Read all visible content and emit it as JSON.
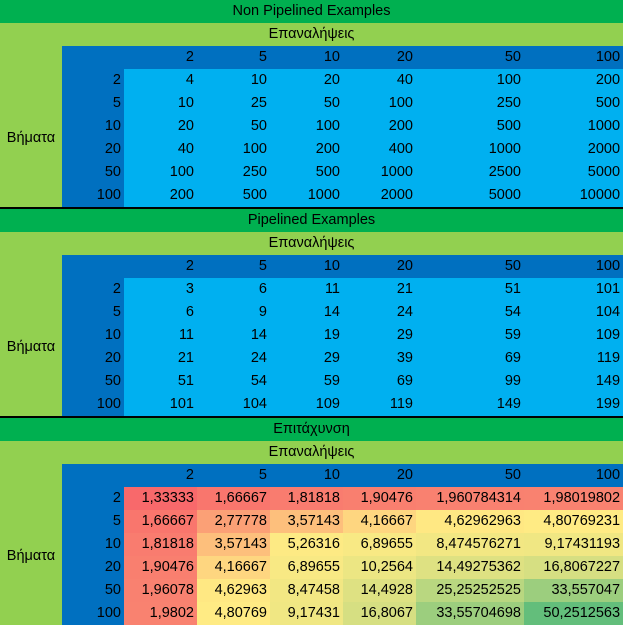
{
  "colors": {
    "title_green": "#00b050",
    "light_green": "#92d050",
    "dark_blue": "#0070c0",
    "light_blue": "#00b0f0",
    "heat_low": "#f8696b",
    "heat_mid": "#ffeb84",
    "heat_high": "#63be7b"
  },
  "col_headers": [
    "2",
    "5",
    "10",
    "20",
    "50",
    "100"
  ],
  "row_headers": [
    "2",
    "5",
    "10",
    "20",
    "50",
    "100"
  ],
  "sections": [
    {
      "title": "Non Pipelined Examples",
      "subtitle": "Επαναλήψεις",
      "row_label": "Βήματα",
      "heatmap": false,
      "rows": [
        [
          "4",
          "10",
          "20",
          "40",
          "100",
          "200"
        ],
        [
          "10",
          "25",
          "50",
          "100",
          "250",
          "500"
        ],
        [
          "20",
          "50",
          "100",
          "200",
          "500",
          "1000"
        ],
        [
          "40",
          "100",
          "200",
          "400",
          "1000",
          "2000"
        ],
        [
          "100",
          "250",
          "500",
          "1000",
          "2500",
          "5000"
        ],
        [
          "200",
          "500",
          "1000",
          "2000",
          "5000",
          "10000"
        ]
      ]
    },
    {
      "title": "Pipelined Examples",
      "subtitle": "Επαναλήψεις",
      "row_label": "Βήματα",
      "heatmap": false,
      "rows": [
        [
          "3",
          "6",
          "11",
          "21",
          "51",
          "101"
        ],
        [
          "6",
          "9",
          "14",
          "24",
          "54",
          "104"
        ],
        [
          "11",
          "14",
          "19",
          "29",
          "59",
          "109"
        ],
        [
          "21",
          "24",
          "29",
          "39",
          "69",
          "119"
        ],
        [
          "51",
          "54",
          "59",
          "69",
          "99",
          "149"
        ],
        [
          "101",
          "104",
          "109",
          "119",
          "149",
          "199"
        ]
      ]
    },
    {
      "title": "Επιτάχυνση",
      "subtitle": "Επαναλήψεις",
      "row_label": "Βήματα",
      "heatmap": true,
      "rows": [
        [
          "1,33333",
          "1,66667",
          "1,81818",
          "1,90476",
          "1,960784314",
          "1,98019802"
        ],
        [
          "1,66667",
          "2,77778",
          "3,57143",
          "4,16667",
          "4,62962963",
          "4,80769231"
        ],
        [
          "1,81818",
          "3,57143",
          "5,26316",
          "6,89655",
          "8,474576271",
          "9,17431193"
        ],
        [
          "1,90476",
          "4,16667",
          "6,89655",
          "10,2564",
          "14,49275362",
          "16,8067227"
        ],
        [
          "1,96078",
          "4,62963",
          "8,47458",
          "14,4928",
          "25,25252525",
          "33,557047"
        ],
        [
          "1,9802",
          "4,80769",
          "9,17431",
          "16,8067",
          "33,55704698",
          "50,2512563"
        ]
      ]
    }
  ]
}
